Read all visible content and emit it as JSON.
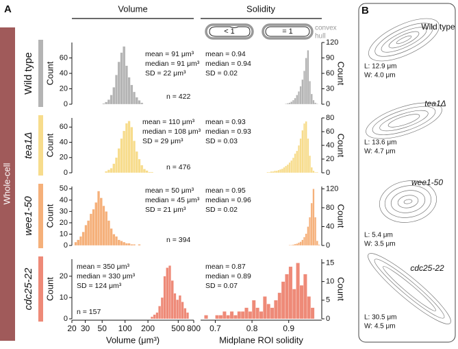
{
  "panel_labels": [
    "A",
    "B"
  ],
  "column_headers": [
    "Volume",
    "Solidity"
  ],
  "convex_hull": {
    "less": "< 1",
    "equal": "= 1",
    "label": [
      "convex",
      "hull"
    ]
  },
  "group_label": "Whole-cell",
  "rows": [
    {
      "name": "Wild type",
      "italic": false
    },
    {
      "name": "tea1Δ",
      "italic": true
    },
    {
      "name": "wee1-50",
      "italic": true
    },
    {
      "name": "cdc25-22",
      "italic": true
    }
  ],
  "chart_data": [
    {
      "type": "histogram",
      "color": "#b4b4b4",
      "log_x": true,
      "xlim": [
        20,
        800
      ],
      "ylim": [
        0,
        80
      ],
      "yticks": [
        0,
        20,
        40,
        60
      ],
      "ylabel": "Count",
      "bins": [
        50.4,
        54.4,
        58.8,
        63.5,
        68.6,
        74,
        80,
        86.4,
        93.3,
        100.8,
        108.8,
        117.5,
        126.9,
        137.1,
        148,
        159.9,
        172.7
      ],
      "values": [
        1,
        3,
        6,
        12,
        22,
        38,
        55,
        67,
        75,
        50,
        35,
        25,
        16,
        9,
        5,
        2
      ],
      "annotations": [
        "mean = 91 μm³",
        "median = 91 μm³",
        "SD = 22 μm³"
      ],
      "n_label": "n = 422"
    },
    {
      "type": "histogram",
      "color": "#b4b4b4",
      "log_x": false,
      "xlim": [
        0.66,
        0.99
      ],
      "ylim": [
        0,
        120
      ],
      "yticks": [
        0,
        30,
        60,
        90,
        120
      ],
      "ylabel": "Count",
      "bins": [
        0.89,
        0.895,
        0.9,
        0.905,
        0.91,
        0.915,
        0.92,
        0.925,
        0.93,
        0.935,
        0.94,
        0.945,
        0.95,
        0.955,
        0.96,
        0.965,
        0.97,
        0.975,
        0.98
      ],
      "values": [
        1,
        2,
        3,
        5,
        8,
        12,
        18,
        25,
        35,
        48,
        65,
        90,
        105,
        45,
        20,
        8,
        3,
        1
      ],
      "annotations": [
        "mean = 0.94",
        "median = 0.94",
        "SD = 0.02"
      ]
    },
    {
      "type": "histogram",
      "color": "#f7dc8c",
      "log_x": true,
      "xlim": [
        20,
        800
      ],
      "ylim": [
        0,
        72
      ],
      "yticks": [
        0,
        20,
        40,
        60
      ],
      "ylabel": "Count",
      "bins": [
        54.4,
        58.8,
        63.5,
        68.6,
        74,
        80,
        86.4,
        93.3,
        100.8,
        108.8,
        117.5,
        126.9,
        137.1,
        148,
        159.9,
        172.7,
        186.5,
        201.4,
        217.5,
        234.9
      ],
      "values": [
        2,
        4,
        6,
        12,
        20,
        32,
        45,
        55,
        65,
        68,
        60,
        42,
        28,
        18,
        10,
        5,
        3,
        1,
        1
      ],
      "annotations": [
        "mean = 110 μm³",
        "median = 108 μm³",
        "SD = 29 μm³"
      ],
      "n_label": "n = 476"
    },
    {
      "type": "histogram",
      "color": "#f7dc8c",
      "log_x": false,
      "xlim": [
        0.66,
        0.99
      ],
      "ylim": [
        0,
        80
      ],
      "yticks": [
        0,
        20,
        40,
        60,
        80
      ],
      "ylabel": "Count",
      "bins": [
        0.84,
        0.845,
        0.85,
        0.855,
        0.86,
        0.865,
        0.87,
        0.875,
        0.88,
        0.885,
        0.89,
        0.895,
        0.9,
        0.905,
        0.91,
        0.915,
        0.92,
        0.925,
        0.93,
        0.935,
        0.94,
        0.945,
        0.95,
        0.955,
        0.96,
        0.965,
        0.97,
        0.975,
        0.98
      ],
      "values": [
        1,
        1,
        2,
        2,
        3,
        3,
        4,
        5,
        6,
        8,
        10,
        12,
        15,
        18,
        22,
        28,
        32,
        40,
        50,
        62,
        72,
        75,
        50,
        25,
        8,
        3,
        1,
        1
      ],
      "annotations": [
        "mean = 0.93",
        "median = 0.93",
        "SD = 0.03"
      ]
    },
    {
      "type": "histogram",
      "color": "#f5b07a",
      "log_x": true,
      "xlim": [
        20,
        800
      ],
      "ylim": [
        0,
        52
      ],
      "yticks": [
        0,
        10,
        20,
        30,
        40,
        50
      ],
      "ylabel": "Count",
      "bins": [
        21.6,
        23.3,
        25.2,
        27.2,
        29.4,
        31.7,
        34.3,
        37,
        40,
        43.2,
        46.7,
        50.4,
        54.4,
        58.8,
        63.5,
        68.6,
        74,
        80,
        86.4,
        93.3,
        100.8,
        108.8,
        117.5,
        126.9,
        137.1,
        148,
        159.9
      ],
      "values": [
        3,
        5,
        8,
        12,
        18,
        22,
        28,
        32,
        38,
        48,
        42,
        35,
        30,
        22,
        15,
        10,
        8,
        5,
        4,
        3,
        2,
        2,
        1,
        1,
        0,
        1
      ],
      "annotations": [
        "mean = 50 μm³",
        "median = 45 μm³",
        "SD = 21 μm³"
      ],
      "n_label": "n = 394"
    },
    {
      "type": "histogram",
      "color": "#f5b07a",
      "log_x": false,
      "xlim": [
        0.66,
        0.99
      ],
      "ylim": [
        0,
        125
      ],
      "yticks": [
        0,
        40,
        80,
        120
      ],
      "ylabel": "Count",
      "bins": [
        0.9,
        0.905,
        0.91,
        0.915,
        0.92,
        0.925,
        0.93,
        0.935,
        0.94,
        0.945,
        0.95,
        0.955,
        0.96,
        0.965,
        0.97,
        0.975,
        0.98,
        0.985
      ],
      "values": [
        1,
        1,
        2,
        3,
        4,
        6,
        8,
        12,
        18,
        25,
        40,
        60,
        90,
        120,
        60,
        10,
        2
      ],
      "annotations": [
        "mean = 0.95",
        "median = 0.96",
        "SD = 0.02"
      ]
    },
    {
      "type": "histogram",
      "color": "#ee8a78",
      "log_x": true,
      "xlim": [
        20,
        800
      ],
      "ylim": [
        0,
        28
      ],
      "yticks": [
        0,
        10,
        20
      ],
      "ylabel": "Count",
      "xticks": [
        20,
        30,
        50,
        100,
        200,
        500,
        800
      ],
      "xlabel": "Volume (μm³)",
      "bins": [
        217.5,
        234.9,
        253.7,
        274,
        296,
        319.7,
        345.3,
        372.9,
        402.7,
        435,
        469.8,
        507.3,
        547.9,
        591.7,
        639.1,
        690.2
      ],
      "values": [
        1,
        2,
        3,
        6,
        10,
        20,
        24,
        25,
        18,
        12,
        9,
        11,
        8,
        5,
        3
      ],
      "annotations": [
        "mean = 350 μm³",
        "median = 330 μm³",
        "SD = 124 μm³"
      ],
      "n_label": "n = 157"
    },
    {
      "type": "histogram",
      "color": "#ee8a78",
      "log_x": false,
      "xlim": [
        0.66,
        0.99
      ],
      "ylim": [
        0,
        16
      ],
      "yticks": [
        0,
        5,
        10,
        15
      ],
      "ylabel": "Count",
      "xticks": [
        0.7,
        0.8,
        0.9
      ],
      "xlabel": "Midplane ROI solidity",
      "bins": [
        0.67,
        0.68,
        0.69,
        0.7,
        0.71,
        0.72,
        0.73,
        0.74,
        0.75,
        0.76,
        0.77,
        0.78,
        0.79,
        0.8,
        0.81,
        0.82,
        0.83,
        0.84,
        0.85,
        0.86,
        0.87,
        0.88,
        0.89,
        0.9,
        0.91,
        0.92,
        0.93,
        0.94,
        0.95,
        0.96,
        0.97
      ],
      "values": [
        1,
        0,
        0,
        1,
        1,
        2,
        1,
        2,
        1,
        2,
        2,
        3,
        2,
        5,
        3,
        2,
        6,
        4,
        3,
        5,
        7,
        10,
        12,
        14,
        8,
        15,
        9,
        12,
        6,
        3
      ],
      "annotations": [
        "mean = 0.87",
        "median = 0.89",
        "SD = 0.07"
      ]
    }
  ],
  "cells": [
    {
      "name": "Wild type",
      "italic": false,
      "length": "L: 12.9 μm",
      "width": "W: 4.0 μm"
    },
    {
      "name": "tea1Δ",
      "italic": true,
      "length": "L: 13.6 μm",
      "width": "W: 4.7 μm"
    },
    {
      "name": "wee1-50",
      "italic": true,
      "length": "L: 5.4 μm",
      "width": "W: 3.5 μm"
    },
    {
      "name": "cdc25-22",
      "italic": true,
      "length": "L: 30.5 μm",
      "width": "W: 4.5 μm"
    }
  ]
}
